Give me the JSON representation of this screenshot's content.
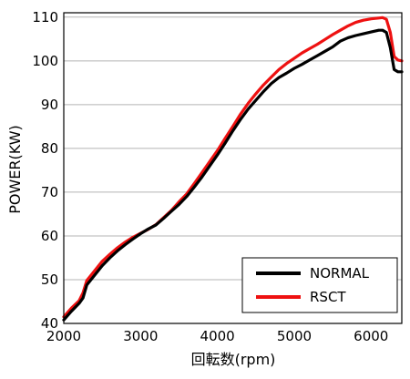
{
  "chart_data": {
    "type": "line",
    "title": "",
    "xlabel": "回転数(rpm)",
    "ylabel": "POWER(KW)",
    "xlim": [
      2000,
      6400
    ],
    "ylim": [
      40,
      111
    ],
    "xticks": [
      2000,
      3000,
      4000,
      5000,
      6000
    ],
    "xtick_labels": [
      "2000",
      "3000",
      "4000",
      "5000",
      "6000"
    ],
    "yticks": [
      40,
      50,
      60,
      70,
      80,
      90,
      100,
      110
    ],
    "ytick_labels": [
      "40",
      "50",
      "60",
      "70",
      "80",
      "90",
      "100",
      "110"
    ],
    "grid": "horizontal",
    "legend_position": "bottom-right",
    "series": [
      {
        "name": "NORMAL",
        "color": "#000000",
        "x": [
          2000,
          2100,
          2200,
          2250,
          2300,
          2400,
          2500,
          2600,
          2700,
          2800,
          2900,
          3000,
          3100,
          3200,
          3300,
          3400,
          3500,
          3600,
          3700,
          3800,
          3900,
          4000,
          4100,
          4200,
          4300,
          4400,
          4500,
          4600,
          4700,
          4800,
          4900,
          5000,
          5100,
          5200,
          5300,
          5400,
          5500,
          5600,
          5700,
          5800,
          5900,
          6000,
          6100,
          6150,
          6200,
          6250,
          6300,
          6350,
          6400
        ],
        "y": [
          40.8,
          42.8,
          44.6,
          45.8,
          48.8,
          51.0,
          53.2,
          55.0,
          56.6,
          58.0,
          59.3,
          60.5,
          61.6,
          62.5,
          64.0,
          65.6,
          67.2,
          69.0,
          71.2,
          73.5,
          76.0,
          78.5,
          81.2,
          84.0,
          86.6,
          89.0,
          91.0,
          93.0,
          94.8,
          96.2,
          97.2,
          98.3,
          99.2,
          100.2,
          101.2,
          102.2,
          103.2,
          104.5,
          105.3,
          105.8,
          106.2,
          106.6,
          107.0,
          107.0,
          106.5,
          103.0,
          98.0,
          97.5,
          97.5
        ]
      },
      {
        "name": "RSCT",
        "color": "#ee1111",
        "x": [
          2000,
          2100,
          2200,
          2250,
          2300,
          2400,
          2500,
          2600,
          2700,
          2800,
          2900,
          3000,
          3100,
          3200,
          3300,
          3400,
          3500,
          3600,
          3700,
          3800,
          3900,
          4000,
          4100,
          4200,
          4300,
          4400,
          4500,
          4600,
          4700,
          4800,
          4900,
          5000,
          5100,
          5200,
          5300,
          5400,
          5500,
          5600,
          5700,
          5800,
          5900,
          6000,
          6100,
          6150,
          6200,
          6250,
          6300,
          6350,
          6400
        ],
        "y": [
          41.5,
          43.5,
          45.2,
          47.0,
          49.8,
          52.0,
          54.2,
          55.8,
          57.3,
          58.6,
          59.7,
          60.6,
          61.5,
          62.6,
          64.2,
          65.8,
          67.8,
          69.6,
          72.0,
          74.5,
          77.0,
          79.5,
          82.3,
          85.0,
          87.8,
          90.3,
          92.5,
          94.5,
          96.3,
          98.0,
          99.4,
          100.6,
          101.8,
          102.8,
          103.8,
          104.9,
          106.0,
          107.0,
          108.0,
          108.8,
          109.3,
          109.6,
          109.8,
          109.9,
          109.5,
          106.5,
          101.0,
          100.2,
          100.0
        ]
      }
    ]
  }
}
